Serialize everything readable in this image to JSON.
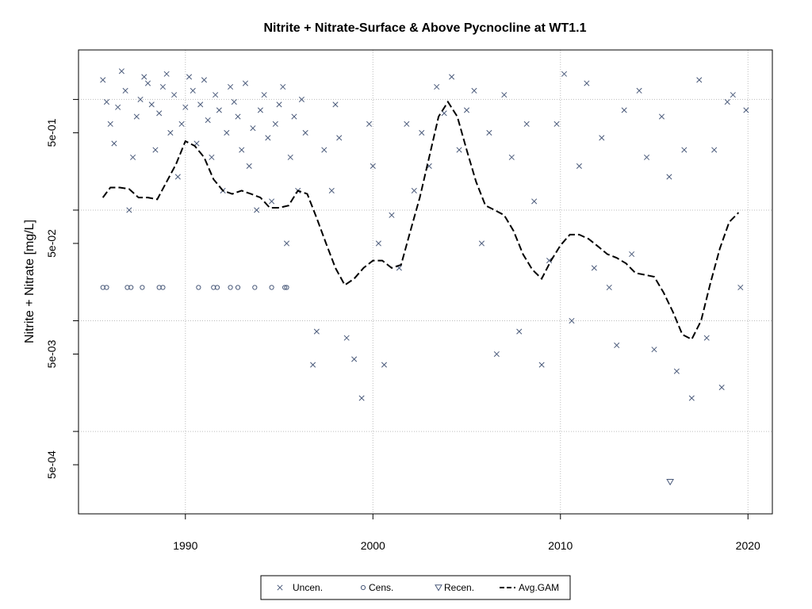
{
  "chart_data": {
    "type": "scatter",
    "title": "Nitrite + Nitrate-Surface & Above Pycnocline at WT1.1",
    "xlabel": "",
    "ylabel": "Nitrite + Nitrate [mg/L]",
    "y_scale": "log",
    "xlim": [
      1984.3,
      2021.3
    ],
    "ylim": [
      0.00018,
      2.8
    ],
    "x_ticks": [
      1990,
      2000,
      2010,
      2020
    ],
    "x_tick_labels": [
      "1990",
      "2000",
      "2010",
      "2020"
    ],
    "y_ticks": [
      0.0005,
      0.005,
      0.05,
      0.5
    ],
    "y_tick_labels": [
      "5e-04",
      "5e-03",
      "5e-02",
      "5e-01"
    ],
    "grid": true,
    "legend_position": "bottom-center",
    "series": [
      {
        "name": "Uncen.",
        "marker": "x",
        "color": "#4a5a7a",
        "points": [
          [
            1985.6,
            1.5
          ],
          [
            1985.8,
            0.95
          ],
          [
            1986.0,
            0.6
          ],
          [
            1986.2,
            0.4
          ],
          [
            1986.4,
            0.85
          ],
          [
            1986.6,
            1.8
          ],
          [
            1986.8,
            1.2
          ],
          [
            1987.0,
            0.1
          ],
          [
            1987.2,
            0.3
          ],
          [
            1987.4,
            0.7
          ],
          [
            1987.6,
            1.0
          ],
          [
            1987.8,
            1.6
          ],
          [
            1988.0,
            1.4
          ],
          [
            1988.2,
            0.9
          ],
          [
            1988.4,
            0.35
          ],
          [
            1988.6,
            0.75
          ],
          [
            1988.8,
            1.3
          ],
          [
            1989.0,
            1.7
          ],
          [
            1989.2,
            0.5
          ],
          [
            1989.4,
            1.1
          ],
          [
            1989.6,
            0.2
          ],
          [
            1989.8,
            0.6
          ],
          [
            1990.0,
            0.85
          ],
          [
            1990.2,
            1.6
          ],
          [
            1990.4,
            1.2
          ],
          [
            1990.6,
            0.4
          ],
          [
            1990.8,
            0.9
          ],
          [
            1991.0,
            1.5
          ],
          [
            1991.2,
            0.65
          ],
          [
            1991.4,
            0.3
          ],
          [
            1991.6,
            1.1
          ],
          [
            1991.8,
            0.8
          ],
          [
            1992.0,
            0.15
          ],
          [
            1992.2,
            0.5
          ],
          [
            1992.4,
            1.3
          ],
          [
            1992.6,
            0.95
          ],
          [
            1992.8,
            0.7
          ],
          [
            1993.0,
            0.35
          ],
          [
            1993.2,
            1.4
          ],
          [
            1993.4,
            0.25
          ],
          [
            1993.6,
            0.55
          ],
          [
            1993.8,
            0.1
          ],
          [
            1994.0,
            0.8
          ],
          [
            1994.2,
            1.1
          ],
          [
            1994.4,
            0.45
          ],
          [
            1994.6,
            0.12
          ],
          [
            1994.8,
            0.6
          ],
          [
            1995.0,
            0.9
          ],
          [
            1995.2,
            1.3
          ],
          [
            1995.4,
            0.05
          ],
          [
            1995.6,
            0.3
          ],
          [
            1995.8,
            0.7
          ],
          [
            1996.0,
            0.15
          ],
          [
            1996.2,
            1.0
          ],
          [
            1996.4,
            0.5
          ],
          [
            1996.8,
            0.004
          ],
          [
            1997.0,
            0.008
          ],
          [
            1997.4,
            0.35
          ],
          [
            1997.8,
            0.15
          ],
          [
            1998.0,
            0.9
          ],
          [
            1998.2,
            0.45
          ],
          [
            1998.6,
            0.007
          ],
          [
            1999.0,
            0.0045
          ],
          [
            1999.4,
            0.002
          ],
          [
            1999.8,
            0.6
          ],
          [
            2000.0,
            0.25
          ],
          [
            2000.3,
            0.05
          ],
          [
            2000.6,
            0.004
          ],
          [
            2001.0,
            0.09
          ],
          [
            2001.4,
            0.03
          ],
          [
            2001.8,
            0.6
          ],
          [
            2002.2,
            0.15
          ],
          [
            2002.6,
            0.5
          ],
          [
            2003.0,
            0.25
          ],
          [
            2003.4,
            1.3
          ],
          [
            2003.8,
            0.75
          ],
          [
            2004.2,
            1.6
          ],
          [
            2004.6,
            0.35
          ],
          [
            2005.0,
            0.8
          ],
          [
            2005.4,
            1.2
          ],
          [
            2005.8,
            0.05
          ],
          [
            2006.2,
            0.5
          ],
          [
            2006.6,
            0.005
          ],
          [
            2007.0,
            1.1
          ],
          [
            2007.4,
            0.3
          ],
          [
            2007.8,
            0.008
          ],
          [
            2008.2,
            0.6
          ],
          [
            2008.6,
            0.12
          ],
          [
            2009.0,
            0.004
          ],
          [
            2009.4,
            0.035
          ],
          [
            2009.8,
            0.6
          ],
          [
            2010.2,
            1.7
          ],
          [
            2010.6,
            0.01
          ],
          [
            2011.0,
            0.25
          ],
          [
            2011.4,
            1.4
          ],
          [
            2011.8,
            0.03
          ],
          [
            2012.2,
            0.45
          ],
          [
            2012.6,
            0.02
          ],
          [
            2013.0,
            0.006
          ],
          [
            2013.4,
            0.8
          ],
          [
            2013.8,
            0.04
          ],
          [
            2014.2,
            1.2
          ],
          [
            2014.6,
            0.3
          ],
          [
            2015.0,
            0.0055
          ],
          [
            2015.4,
            0.7
          ],
          [
            2015.8,
            0.2
          ],
          [
            2016.2,
            0.0035
          ],
          [
            2016.6,
            0.35
          ],
          [
            2017.0,
            0.002
          ],
          [
            2017.4,
            1.5
          ],
          [
            2017.8,
            0.007
          ],
          [
            2018.2,
            0.35
          ],
          [
            2018.6,
            0.0025
          ],
          [
            2018.9,
            0.95
          ],
          [
            2019.2,
            1.1
          ],
          [
            2019.6,
            0.02
          ],
          [
            2019.9,
            0.8
          ]
        ]
      },
      {
        "name": "Cens.",
        "marker": "circle",
        "color": "#4a5a7a",
        "points": [
          [
            1985.6,
            0.02
          ],
          [
            1985.8,
            0.02
          ],
          [
            1986.9,
            0.02
          ],
          [
            1987.1,
            0.02
          ],
          [
            1987.7,
            0.02
          ],
          [
            1988.6,
            0.02
          ],
          [
            1988.8,
            0.02
          ],
          [
            1990.7,
            0.02
          ],
          [
            1991.5,
            0.02
          ],
          [
            1991.7,
            0.02
          ],
          [
            1992.4,
            0.02
          ],
          [
            1992.8,
            0.02
          ],
          [
            1993.7,
            0.02
          ],
          [
            1994.6,
            0.02
          ],
          [
            1995.3,
            0.02
          ],
          [
            1995.4,
            0.02
          ]
        ]
      },
      {
        "name": "Recen.",
        "marker": "triangle-down",
        "color": "#4a5a7a",
        "points": [
          [
            2015.85,
            0.00035
          ]
        ]
      },
      {
        "name": "Avg.GAM",
        "marker": "dashed-line",
        "color": "#000000",
        "points": [
          [
            1985.6,
            0.13
          ],
          [
            1986.0,
            0.16
          ],
          [
            1986.5,
            0.16
          ],
          [
            1987.0,
            0.155
          ],
          [
            1987.5,
            0.13
          ],
          [
            1988.0,
            0.13
          ],
          [
            1988.5,
            0.125
          ],
          [
            1989.0,
            0.18
          ],
          [
            1989.5,
            0.26
          ],
          [
            1990.0,
            0.42
          ],
          [
            1990.5,
            0.38
          ],
          [
            1991.0,
            0.3
          ],
          [
            1991.5,
            0.19
          ],
          [
            1992.0,
            0.15
          ],
          [
            1992.5,
            0.14
          ],
          [
            1993.0,
            0.15
          ],
          [
            1993.5,
            0.14
          ],
          [
            1994.0,
            0.13
          ],
          [
            1994.5,
            0.105
          ],
          [
            1995.0,
            0.105
          ],
          [
            1995.5,
            0.11
          ],
          [
            1996.0,
            0.15
          ],
          [
            1996.5,
            0.14
          ],
          [
            1997.0,
            0.085
          ],
          [
            1997.5,
            0.05
          ],
          [
            1998.0,
            0.03
          ],
          [
            1998.5,
            0.021
          ],
          [
            1999.0,
            0.024
          ],
          [
            1999.5,
            0.03
          ],
          [
            2000.0,
            0.035
          ],
          [
            2000.5,
            0.035
          ],
          [
            2001.0,
            0.03
          ],
          [
            2001.5,
            0.032
          ],
          [
            2002.0,
            0.065
          ],
          [
            2002.5,
            0.13
          ],
          [
            2003.0,
            0.3
          ],
          [
            2003.5,
            0.7
          ],
          [
            2004.0,
            0.95
          ],
          [
            2004.5,
            0.7
          ],
          [
            2005.0,
            0.35
          ],
          [
            2005.5,
            0.18
          ],
          [
            2006.0,
            0.11
          ],
          [
            2006.5,
            0.1
          ],
          [
            2007.0,
            0.09
          ],
          [
            2007.5,
            0.065
          ],
          [
            2008.0,
            0.04
          ],
          [
            2008.5,
            0.029
          ],
          [
            2009.0,
            0.024
          ],
          [
            2009.5,
            0.035
          ],
          [
            2010.0,
            0.048
          ],
          [
            2010.5,
            0.06
          ],
          [
            2011.0,
            0.06
          ],
          [
            2011.5,
            0.055
          ],
          [
            2012.0,
            0.047
          ],
          [
            2012.5,
            0.04
          ],
          [
            2013.0,
            0.037
          ],
          [
            2013.5,
            0.033
          ],
          [
            2014.0,
            0.027
          ],
          [
            2014.5,
            0.026
          ],
          [
            2015.0,
            0.025
          ],
          [
            2015.5,
            0.018
          ],
          [
            2016.0,
            0.012
          ],
          [
            2016.5,
            0.0075
          ],
          [
            2017.0,
            0.0068
          ],
          [
            2017.5,
            0.01
          ],
          [
            2018.0,
            0.022
          ],
          [
            2018.5,
            0.045
          ],
          [
            2019.0,
            0.078
          ],
          [
            2019.5,
            0.095
          ]
        ]
      }
    ]
  }
}
